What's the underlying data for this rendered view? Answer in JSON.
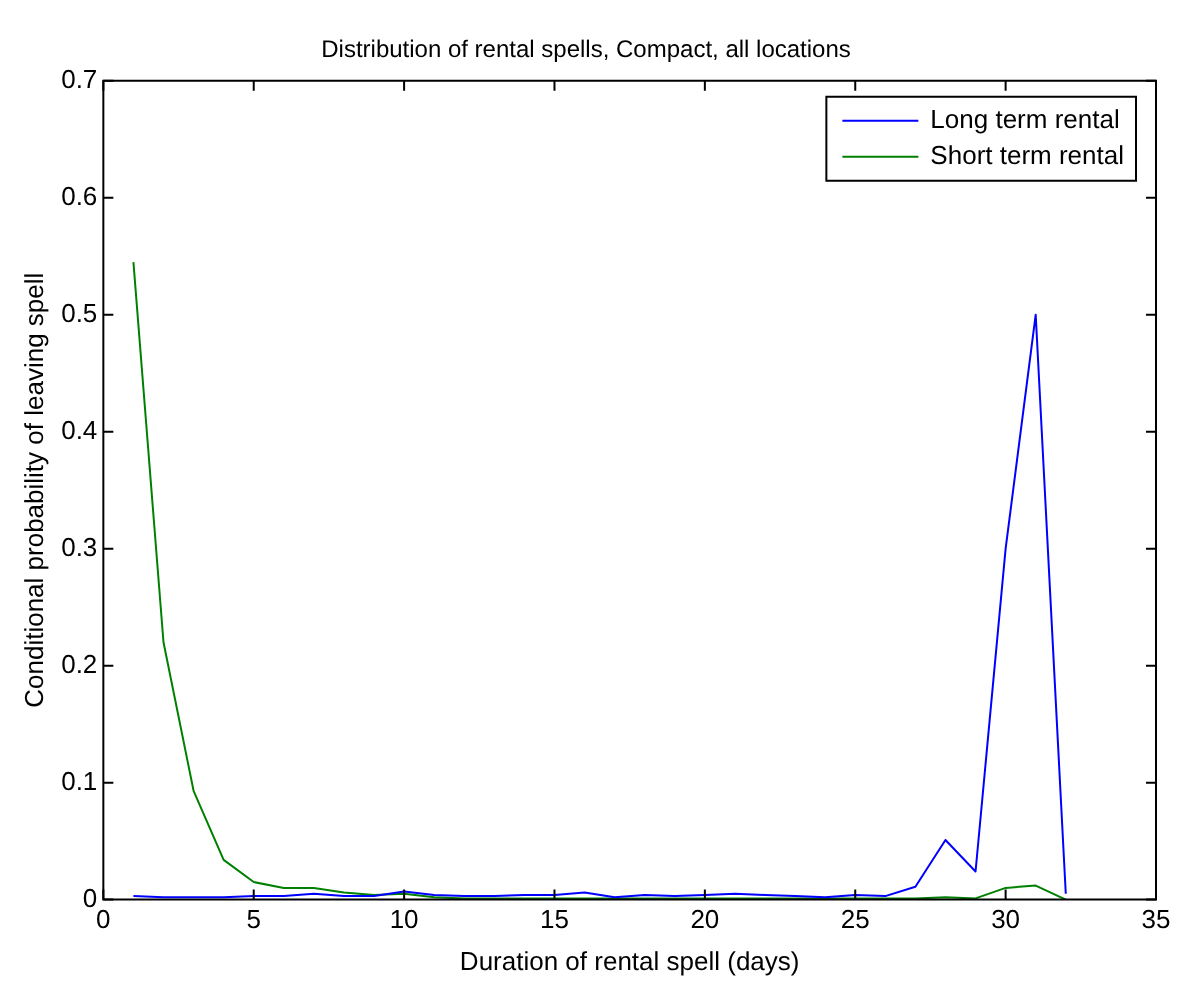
{
  "chart_data": {
    "type": "line",
    "title": "Distribution of rental spells, Compact, all locations",
    "xlabel": "Duration of rental spell (days)",
    "ylabel": "Conditional probability of leaving spell",
    "x": [
      1,
      2,
      3,
      4,
      5,
      6,
      7,
      8,
      9,
      10,
      11,
      12,
      13,
      14,
      15,
      16,
      17,
      18,
      19,
      20,
      21,
      22,
      23,
      24,
      25,
      26,
      27,
      28,
      29,
      30,
      31,
      32
    ],
    "series": [
      {
        "name": "Long term rental",
        "color": "#0000ff",
        "values": [
          0.003,
          0.002,
          0.002,
          0.002,
          0.003,
          0.003,
          0.005,
          0.003,
          0.003,
          0.007,
          0.004,
          0.003,
          0.003,
          0.004,
          0.004,
          0.006,
          0.002,
          0.004,
          0.003,
          0.004,
          0.005,
          0.004,
          0.003,
          0.002,
          0.004,
          0.003,
          0.011,
          0.051,
          0.024,
          0.3,
          0.5,
          0.005
        ]
      },
      {
        "name": "Short term rental",
        "color": "#008000",
        "values": [
          0.545,
          0.22,
          0.093,
          0.034,
          0.015,
          0.01,
          0.01,
          0.006,
          0.004,
          0.005,
          0.002,
          0.001,
          0.001,
          0.001,
          0.001,
          0.001,
          0.001,
          0.001,
          0.001,
          0.001,
          0.001,
          0.001,
          0.001,
          0.001,
          0.001,
          0.001,
          0.001,
          0.002,
          0.001,
          0.01,
          0.012,
          0
        ]
      }
    ],
    "xlim": [
      0,
      35
    ],
    "xticks": [
      0,
      5,
      10,
      15,
      20,
      25,
      30,
      35
    ],
    "ylim": [
      0,
      0.7
    ],
    "yticks": [
      0,
      0.1,
      0.2,
      0.3,
      0.4,
      0.5,
      0.6,
      0.7
    ],
    "grid": false,
    "legend": "top right",
    "marker": "none",
    "line_style": "solid"
  }
}
